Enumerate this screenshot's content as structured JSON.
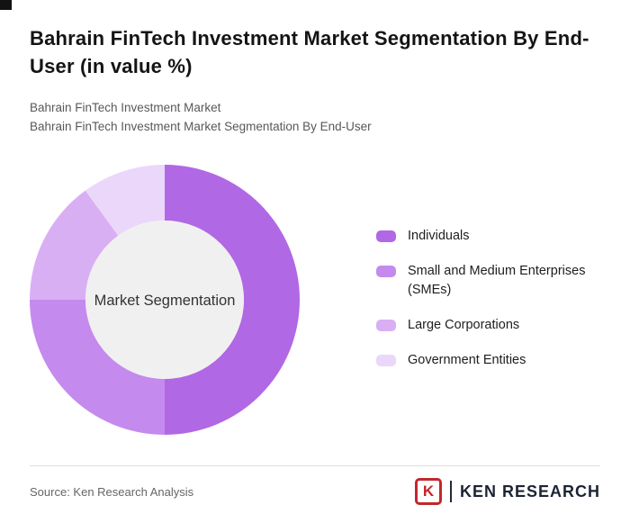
{
  "page": {
    "title": "Bahrain FinTech Investment Market Segmentation By End-User (in value %)",
    "subtitle1": "Bahrain FinTech Investment Market",
    "subtitle2": "Bahrain FinTech Investment Market Segmentation By End-User"
  },
  "chart_data": {
    "type": "pie",
    "variant": "donut",
    "title": "Bahrain FinTech Investment Market Segmentation By End-User (in value %)",
    "center_label": "Market Segmentation",
    "labels": [
      "Individuals",
      "Small and Medium Enterprises (SMEs)",
      "Large Corporations",
      "Government Entities"
    ],
    "values": [
      50,
      25,
      15,
      10
    ],
    "colors": [
      "#b168e4",
      "#c48aee",
      "#d9aff4",
      "#ead7fa"
    ],
    "center_fill": "#f0f0f0",
    "center_text_color": "#333333",
    "legend_position": "right"
  },
  "legend": {
    "items": [
      {
        "label": "Individuals"
      },
      {
        "label": "Small and Medium Enterprises (SMEs)"
      },
      {
        "label": "Large Corporations"
      },
      {
        "label": "Government Entities"
      }
    ]
  },
  "footer": {
    "source": "Source: Ken Research Analysis",
    "logo_letter": "K",
    "logo_text": "KEN RESEARCH"
  }
}
